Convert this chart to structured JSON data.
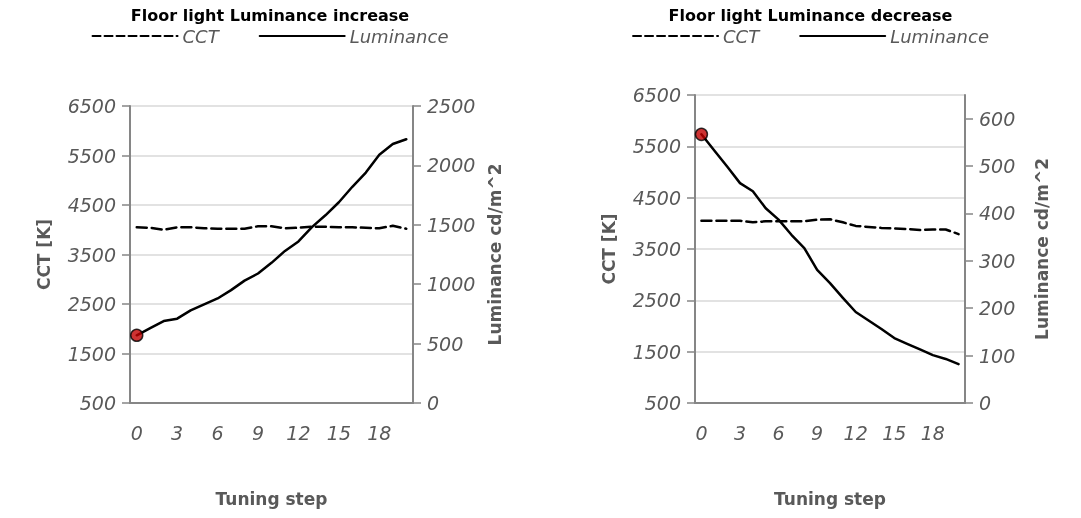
{
  "chart_data": [
    {
      "type": "line",
      "title": "Floor light Luminance increase",
      "xlabel": "Tuning step",
      "ylabel": "CCT [K]",
      "y2label": "Luminance cd/m^2",
      "categories": [
        "0",
        null,
        null,
        "3",
        null,
        null,
        "6",
        null,
        null,
        "9",
        null,
        null,
        "12",
        null,
        null,
        "15",
        null,
        null,
        "18",
        null,
        null
      ],
      "series": [
        {
          "name": "CCT",
          "color": "#000000",
          "line_style": "dashed",
          "values": [
            4050,
            4040,
            4000,
            4050,
            4050,
            4030,
            4020,
            4020,
            4020,
            4070,
            4070,
            4030,
            4040,
            4060,
            4060,
            4050,
            4050,
            4040,
            4030,
            4080,
            4020
          ]
        },
        {
          "name": "Luminance",
          "color": "#000000",
          "line_style": "solid",
          "axis": "y2",
          "values": [
            570,
            630,
            690,
            710,
            780,
            830,
            880,
            950,
            1030,
            1090,
            1180,
            1280,
            1360,
            1480,
            1580,
            1690,
            1820,
            1940,
            2090,
            2180,
            2220
          ]
        },
        {
          "type": "scatter",
          "color": "#c00000",
          "marker": "circle",
          "axis": "y2",
          "x": [
            "0"
          ],
          "values": [
            570
          ]
        }
      ],
      "ylim": [
        500,
        6500
      ],
      "yticks": [
        500,
        1500,
        2500,
        3500,
        4500,
        5500,
        6500
      ],
      "y2lim": [
        0,
        2500
      ],
      "y2ticks": [
        0,
        500,
        1000,
        1500,
        2000,
        2500
      ],
      "grid": "y",
      "legend": "top"
    },
    {
      "type": "line",
      "title": "Floor light Luminance decrease",
      "xlabel": "Tuning step",
      "ylabel": "CCT [K]",
      "y2label": "Luminance cd/m^2",
      "categories": [
        "0",
        null,
        null,
        "3",
        null,
        null,
        "6",
        null,
        null,
        "9",
        null,
        null,
        "12",
        null,
        null,
        "15",
        null,
        null,
        "18",
        null,
        null
      ],
      "series": [
        {
          "name": "CCT",
          "color": "#000000",
          "line_style": "dashed",
          "values": [
            4050,
            4050,
            4050,
            4050,
            4020,
            4040,
            4040,
            4040,
            4040,
            4070,
            4080,
            4020,
            3950,
            3930,
            3910,
            3900,
            3890,
            3870,
            3880,
            3880,
            3790
          ]
        },
        {
          "name": "Luminance",
          "color": "#000000",
          "line_style": "solid",
          "axis": "y2",
          "values": [
            567,
            533,
            499,
            464,
            447,
            411,
            387,
            355,
            327,
            281,
            253,
            222,
            192,
            174,
            156,
            137,
            125,
            113,
            101,
            93,
            82
          ]
        },
        {
          "type": "scatter",
          "color": "#c00000",
          "marker": "circle",
          "axis": "y2",
          "x": [
            "0"
          ],
          "values": [
            567
          ]
        }
      ],
      "ylim": [
        500,
        6500
      ],
      "yticks": [
        500,
        1500,
        2500,
        3500,
        4500,
        5500,
        6500
      ],
      "y2lim": [
        0,
        650
      ],
      "y2ticks": [
        0,
        100,
        200,
        300,
        400,
        500,
        600
      ],
      "grid": "y",
      "legend": "top"
    }
  ]
}
